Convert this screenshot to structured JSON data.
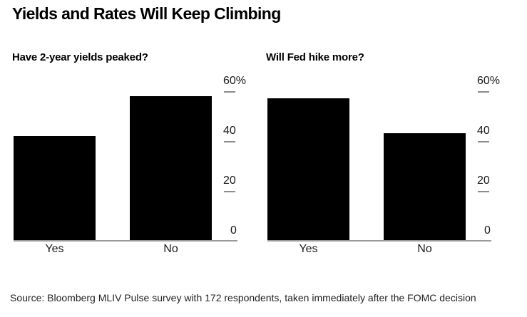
{
  "header": {
    "title": "Yields and Rates Will Keep Climbing"
  },
  "chart_data": [
    {
      "type": "bar",
      "title": "Have 2-year yields peaked?",
      "categories": [
        "Yes",
        "No"
      ],
      "values": [
        42,
        58
      ],
      "unit": "%",
      "ylim": [
        0,
        60
      ],
      "yticks": [
        {
          "value": 60,
          "label": "60%"
        },
        {
          "value": 40,
          "label": "40"
        },
        {
          "value": 20,
          "label": "20"
        },
        {
          "value": 0,
          "label": "0"
        }
      ],
      "axis_side": "right",
      "grid": false,
      "legend": "none"
    },
    {
      "type": "bar",
      "title": "Will Fed hike more?",
      "categories": [
        "Yes",
        "No"
      ],
      "values": [
        57,
        43
      ],
      "unit": "%",
      "ylim": [
        0,
        60
      ],
      "yticks": [
        {
          "value": 60,
          "label": "60%"
        },
        {
          "value": 40,
          "label": "40"
        },
        {
          "value": 20,
          "label": "20"
        },
        {
          "value": 0,
          "label": "0"
        }
      ],
      "axis_side": "right",
      "grid": false,
      "legend": "none"
    }
  ],
  "footer": {
    "source": "Source: Bloomberg MLIV Pulse survey with 172 respondents, taken immediately after the FOMC decision"
  },
  "colors": {
    "background": "#ffffff",
    "bar": "#000000",
    "axis_line": "#999999",
    "tick": "#8c8c8c",
    "title_text": "#000000",
    "axis_text": "#1a1a1a",
    "source_text": "#222222"
  }
}
